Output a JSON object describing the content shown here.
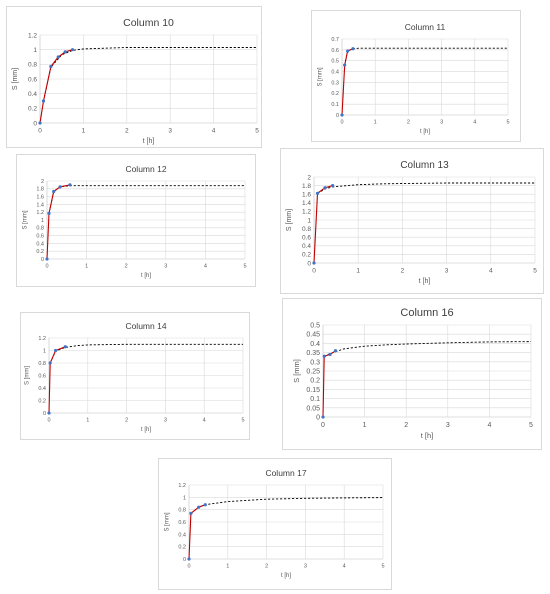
{
  "colors": {
    "grid": "#d9d9d9",
    "axis": "#bfbfbf",
    "measured": "#c00000",
    "marker": "#4472c4",
    "fit": "#000000"
  },
  "chart_data": [
    {
      "type": "line",
      "title": "Column 10",
      "xlabel": "t [h]",
      "ylabel": "S [mm]",
      "xlim": [
        0,
        5
      ],
      "ylim": [
        0,
        1.2
      ],
      "xticks": [
        0,
        1,
        2,
        3,
        4,
        5
      ],
      "yticks": [
        "0",
        "0.2",
        "0.4",
        "0.6",
        "0.8",
        "1",
        "1.2"
      ],
      "grid": true,
      "series": [
        {
          "kind": "measured",
          "x": [
            0,
            0.08,
            0.25,
            0.42,
            0.58,
            0.75
          ],
          "y": [
            0,
            0.3,
            0.77,
            0.9,
            0.97,
            1.0
          ]
        },
        {
          "kind": "fit",
          "x": [
            0.08,
            0.25,
            0.5,
            0.75,
            1,
            1.5,
            2,
            2.5,
            3,
            3.5,
            4,
            4.5,
            5
          ],
          "y": [
            0.3,
            0.76,
            0.93,
            0.99,
            1.01,
            1.02,
            1.03,
            1.03,
            1.03,
            1.03,
            1.03,
            1.03,
            1.03
          ]
        }
      ]
    },
    {
      "type": "line",
      "title": "Column 11",
      "xlabel": "t [h]",
      "ylabel": "S [mm]",
      "xlim": [
        0,
        5
      ],
      "ylim": [
        0,
        0.7
      ],
      "xticks": [
        0,
        1,
        2,
        3,
        4,
        5
      ],
      "yticks": [
        "0",
        "0.1",
        "0.2",
        "0.3",
        "0.4",
        "0.5",
        "0.6",
        "0.7"
      ],
      "grid": true,
      "series": [
        {
          "kind": "measured",
          "x": [
            0,
            0.08,
            0.17,
            0.33
          ],
          "y": [
            0,
            0.46,
            0.59,
            0.61
          ]
        },
        {
          "kind": "fit",
          "x": [
            0.08,
            0.17,
            0.33,
            0.5,
            1,
            2,
            3,
            4,
            5
          ],
          "y": [
            0.46,
            0.59,
            0.61,
            0.615,
            0.615,
            0.615,
            0.615,
            0.615,
            0.615
          ]
        }
      ]
    },
    {
      "type": "line",
      "title": "Column 12",
      "xlabel": "t [h]",
      "ylabel": "S [mm]",
      "xlim": [
        0,
        5
      ],
      "ylim": [
        0,
        2
      ],
      "xticks": [
        0,
        1,
        2,
        3,
        4,
        5
      ],
      "yticks": [
        "0",
        "0.2",
        "0.4",
        "0.6",
        "0.8",
        "1",
        "1.2",
        "1.4",
        "1.6",
        "1.8",
        "2"
      ],
      "grid": true,
      "series": [
        {
          "kind": "measured",
          "x": [
            0,
            0.05,
            0.17,
            0.33,
            0.58
          ],
          "y": [
            0,
            1.17,
            1.73,
            1.85,
            1.9
          ]
        },
        {
          "kind": "fit",
          "x": [
            0.05,
            0.17,
            0.33,
            0.58,
            1,
            2,
            3,
            4,
            5
          ],
          "y": [
            1.17,
            1.73,
            1.85,
            1.88,
            1.88,
            1.88,
            1.88,
            1.88,
            1.88
          ]
        }
      ]
    },
    {
      "type": "line",
      "title": "Column 13",
      "xlabel": "t [h]",
      "ylabel": "S [mm]",
      "xlim": [
        0,
        5
      ],
      "ylim": [
        0,
        2
      ],
      "xticks": [
        0,
        1,
        2,
        3,
        4,
        5
      ],
      "yticks": [
        "0",
        "0.2",
        "0.4",
        "0.6",
        "0.8",
        "1",
        "1.2",
        "1.4",
        "1.6",
        "1.8",
        "2"
      ],
      "grid": true,
      "series": [
        {
          "kind": "measured",
          "x": [
            0,
            0.08,
            0.25,
            0.42
          ],
          "y": [
            0,
            1.62,
            1.75,
            1.8
          ]
        },
        {
          "kind": "fit",
          "x": [
            0.08,
            0.25,
            0.42,
            0.75,
            1,
            1.5,
            2,
            3,
            4,
            5
          ],
          "y": [
            1.62,
            1.72,
            1.77,
            1.8,
            1.82,
            1.84,
            1.85,
            1.86,
            1.86,
            1.86
          ]
        }
      ]
    },
    {
      "type": "line",
      "title": "Column 14",
      "xlabel": "t [h]",
      "ylabel": "S [mm]",
      "xlim": [
        0,
        5
      ],
      "ylim": [
        0,
        1.2
      ],
      "xticks": [
        0,
        1,
        2,
        3,
        4,
        5
      ],
      "yticks": [
        "0",
        "0.2",
        "0.4",
        "0.6",
        "0.8",
        "1",
        "1.2"
      ],
      "grid": true,
      "series": [
        {
          "kind": "measured",
          "x": [
            0,
            0.03,
            0.17,
            0.42
          ],
          "y": [
            0,
            0.8,
            1.0,
            1.06
          ]
        },
        {
          "kind": "fit",
          "x": [
            0.03,
            0.17,
            0.42,
            0.75,
            1,
            2,
            3,
            4,
            5
          ],
          "y": [
            0.8,
            0.99,
            1.05,
            1.08,
            1.09,
            1.1,
            1.1,
            1.1,
            1.1
          ]
        }
      ]
    },
    {
      "type": "line",
      "title": "Column 16",
      "xlabel": "t [h]",
      "ylabel": "S [mm]",
      "xlim": [
        0,
        5
      ],
      "ylim": [
        0,
        0.5
      ],
      "xticks": [
        0,
        1,
        2,
        3,
        4,
        5
      ],
      "yticks": [
        "0",
        "0.05",
        "0.1",
        "0.15",
        "0.2",
        "0.25",
        "0.3",
        "0.35",
        "0.4",
        "0.45",
        "0.5"
      ],
      "grid": true,
      "series": [
        {
          "kind": "measured",
          "x": [
            0,
            0.03,
            0.17,
            0.3
          ],
          "y": [
            0,
            0.33,
            0.34,
            0.36
          ]
        },
        {
          "kind": "fit",
          "x": [
            0.03,
            0.17,
            0.3,
            0.5,
            1,
            1.5,
            2,
            3,
            4,
            5
          ],
          "y": [
            0.33,
            0.345,
            0.355,
            0.37,
            0.385,
            0.392,
            0.397,
            0.403,
            0.408,
            0.41
          ]
        }
      ]
    },
    {
      "type": "line",
      "title": "Column 17",
      "xlabel": "t [h]",
      "ylabel": "S [mm]",
      "xlim": [
        0,
        5
      ],
      "ylim": [
        0,
        1.2
      ],
      "xticks": [
        0,
        1,
        2,
        3,
        4,
        5
      ],
      "yticks": [
        "0",
        "0.2",
        "0.4",
        "0.6",
        "0.8",
        "1",
        "1.2"
      ],
      "grid": true,
      "series": [
        {
          "kind": "measured",
          "x": [
            0,
            0.05,
            0.25,
            0.42
          ],
          "y": [
            0,
            0.74,
            0.84,
            0.88
          ]
        },
        {
          "kind": "fit",
          "x": [
            0.05,
            0.25,
            0.42,
            0.75,
            1,
            1.5,
            2,
            3,
            4,
            5
          ],
          "y": [
            0.74,
            0.84,
            0.88,
            0.91,
            0.93,
            0.95,
            0.97,
            0.985,
            0.99,
            0.995
          ]
        }
      ]
    }
  ]
}
